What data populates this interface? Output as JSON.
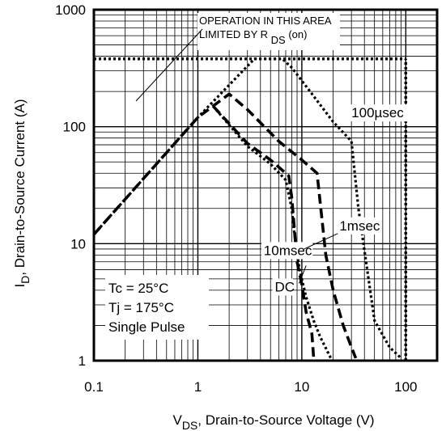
{
  "chart_data": {
    "type": "line",
    "x_scale": "log",
    "y_scale": "log",
    "xlim": [
      0.1,
      200
    ],
    "ylim": [
      1,
      1000
    ],
    "grid": true,
    "legend": "none",
    "x_ticks": [
      {
        "value": 0.1,
        "label": "0.1"
      },
      {
        "value": 1,
        "label": "1"
      },
      {
        "value": 10,
        "label": "10"
      },
      {
        "value": 100,
        "label": "100"
      }
    ],
    "y_ticks": [
      {
        "value": 1,
        "label": "1"
      },
      {
        "value": 10,
        "label": "10"
      },
      {
        "value": 100,
        "label": "100"
      },
      {
        "value": 1000,
        "label": "1000"
      }
    ],
    "xlabel": {
      "main": "V",
      "sub": "DS",
      "rest": ", Drain-to-Source Voltage (V)"
    },
    "ylabel": {
      "main": "I",
      "sub": "D",
      "rest": ",  Drain-to-Source Current (A)"
    },
    "annotations": {
      "rdson_line1": "OPERATION IN THIS AREA",
      "rdson_line2": "LIMITED BY R",
      "rdson_sub": "DS",
      "rdson_paren": "(on)",
      "conditions": [
        "Tc = 25°C",
        "Tj = 175°C",
        "Single Pulse"
      ]
    },
    "limit_lines": [
      {
        "name": "current-limit",
        "points": [
          [
            0.1,
            380
          ],
          [
            100,
            380
          ]
        ]
      },
      {
        "name": "voltage-limit",
        "points": [
          [
            100,
            1
          ],
          [
            100,
            380
          ]
        ]
      }
    ],
    "series": [
      {
        "name": "100µsec",
        "points": [
          [
            0.1,
            12
          ],
          [
            1,
            120
          ],
          [
            3.5,
            380
          ],
          [
            6.5,
            380
          ],
          [
            8,
            320
          ],
          [
            12,
            200
          ],
          [
            20,
            110
          ],
          [
            30,
            75
          ],
          [
            35,
            20
          ],
          [
            50,
            2.2
          ],
          [
            70,
            1.3
          ],
          [
            90,
            1.05
          ]
        ]
      },
      {
        "name": "1msec",
        "points": [
          [
            0.1,
            12
          ],
          [
            1,
            120
          ],
          [
            2,
            190
          ],
          [
            3,
            140
          ],
          [
            6,
            75
          ],
          [
            10,
            52
          ],
          [
            14,
            40
          ],
          [
            17,
            8
          ],
          [
            20,
            4
          ],
          [
            25,
            2
          ],
          [
            30,
            1.3
          ],
          [
            33,
            1.05
          ]
        ]
      },
      {
        "name": "10msec",
        "points": [
          [
            1.4,
            150
          ],
          [
            3,
            72
          ],
          [
            5,
            52
          ],
          [
            7.5,
            38
          ],
          [
            8,
            25
          ],
          [
            8.5,
            13
          ],
          [
            9,
            7
          ],
          [
            10,
            4.5
          ],
          [
            11,
            2.6
          ],
          [
            12.5,
            1.7
          ],
          [
            13,
            1.05
          ]
        ]
      },
      {
        "name": "DC",
        "points": [
          [
            1.4,
            150
          ],
          [
            3,
            68
          ],
          [
            5,
            48
          ],
          [
            7,
            35
          ],
          [
            8,
            20
          ],
          [
            8.5,
            12
          ],
          [
            9.5,
            6
          ],
          [
            11,
            3.5
          ],
          [
            13,
            2.2
          ],
          [
            15,
            1.6
          ],
          [
            19,
            1.05
          ]
        ]
      }
    ],
    "series_label_positions": {
      "100µsec": [
        30,
        120
      ],
      "1msec": [
        23,
        13
      ],
      "10msec": [
        4.3,
        8
      ],
      "DC": [
        5.5,
        3.9
      ]
    }
  }
}
